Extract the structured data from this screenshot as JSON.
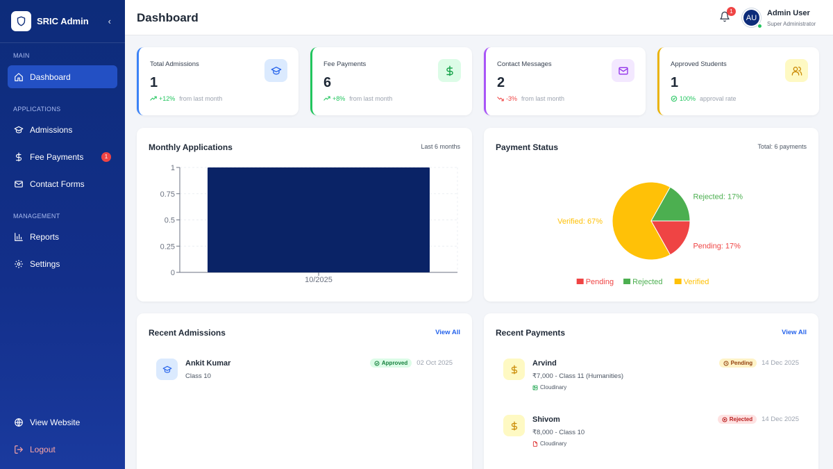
{
  "sidebar": {
    "brand": "SRIC Admin",
    "collapse": "‹",
    "sections": {
      "main": "MAIN",
      "applications": "APPLICATIONS",
      "management": "MANAGEMENT"
    },
    "items": {
      "dashboard": "Dashboard",
      "admissions": "Admissions",
      "fee_payments": "Fee Payments",
      "fee_payments_badge": "1",
      "contact_forms": "Contact Forms",
      "reports": "Reports",
      "settings": "Settings",
      "view_website": "View Website",
      "logout": "Logout"
    }
  },
  "header": {
    "title": "Dashboard",
    "notification_count": "1",
    "avatar_initials": "AU",
    "user_name": "Admin User",
    "user_role": "Super Administrator"
  },
  "stats": [
    {
      "label": "Total Admissions",
      "value": "1",
      "trend": "+12%",
      "note": "from last month",
      "color": "#3b82f6",
      "trend_color": "#22c55e",
      "icon": "graduation-cap-icon"
    },
    {
      "label": "Fee Payments",
      "value": "6",
      "trend": "+8%",
      "note": "from last month",
      "color": "#22c55e",
      "trend_color": "#22c55e",
      "icon": "dollar-icon"
    },
    {
      "label": "Contact Messages",
      "value": "2",
      "trend": "-3%",
      "note": "from last month",
      "color": "#a855f7",
      "trend_color": "#ef4444",
      "icon": "mail-icon"
    },
    {
      "label": "Approved Students",
      "value": "1",
      "trend": "100%",
      "note": "approval rate",
      "color": "#eab308",
      "trend_color": "#22c55e",
      "icon": "users-icon"
    }
  ],
  "monthly_applications": {
    "title": "Monthly Applications",
    "meta": "Last 6 months"
  },
  "payment_status": {
    "title": "Payment Status",
    "meta": "Total: 6 payments"
  },
  "chart_data": [
    {
      "type": "bar",
      "categories": [
        "10/2025"
      ],
      "values": [
        1
      ],
      "ylim": [
        0,
        1
      ],
      "yticks": [
        "0",
        "0.25",
        "0.5",
        "0.75",
        "1"
      ],
      "color": "#0a2366",
      "grid": true
    },
    {
      "type": "pie",
      "labels": [
        "Pending",
        "Rejected",
        "Verified"
      ],
      "values": [
        17,
        17,
        67
      ],
      "slice_labels": [
        "Pending: 17%",
        "Rejected: 17%",
        "Verified: 67%"
      ],
      "colors": [
        "#ef4444",
        "#4caf50",
        "#ffc107"
      ],
      "legend": "bottom"
    }
  ],
  "recent_admissions": {
    "title": "Recent Admissions",
    "link": "View All",
    "items": [
      {
        "name": "Ankit Kumar",
        "sub": "Class 10",
        "status": "Approved",
        "date": "02 Oct 2025"
      }
    ]
  },
  "recent_payments": {
    "title": "Recent Payments",
    "link": "View All",
    "items": [
      {
        "name": "Arvind",
        "sub": "₹7,000 - Class 11 (Humanities)",
        "source": "Cloudinary",
        "status": "Pending",
        "date": "14 Dec 2025"
      },
      {
        "name": "Shivom",
        "sub": "₹8,000 - Class 10",
        "source": "Cloudinary",
        "status": "Rejected",
        "date": "14 Dec 2025"
      }
    ]
  }
}
